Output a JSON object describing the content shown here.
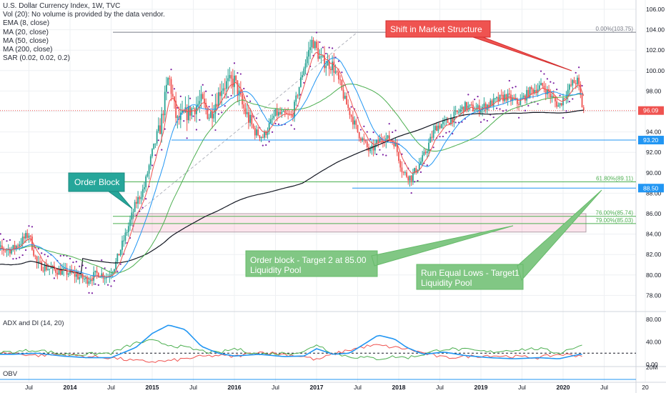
{
  "header": {
    "title": "U.S. Dollar Currency Index, 1W, TVC",
    "lines": [
      "Vol (20): No volume is provided by the data vendor.",
      "EMA (8, close)",
      "MA (20, close)",
      "MA (50, close)",
      "MA (200, close)",
      "SAR (0.02, 0.02, 0.2)"
    ]
  },
  "colors": {
    "candle_up": "#2aa394",
    "candle_down": "#ef5350",
    "ema8": "#ef5350",
    "ma20": "#2196f3",
    "ma50": "#4caf50",
    "ma200": "#131722",
    "sar": "#7b1fa2",
    "adx": "#2196f3",
    "di_plus": "#4caf50",
    "di_minus": "#ef5350",
    "price_tag": "#ef5350",
    "level_tag": "#2196f3",
    "annotation_green": "#81c784",
    "annotation_teal": "#26a69a",
    "annotation_red": "#ef5350"
  },
  "chart_data": {
    "type": "candlestick",
    "title": "U.S. Dollar Currency Index, 1W, TVC",
    "x_ticks": [
      "Jul",
      "2014",
      "Jul",
      "2015",
      "Jul",
      "2016",
      "Jul",
      "2017",
      "Jul",
      "2018",
      "Jul",
      "2019",
      "Jul",
      "2020",
      "Jul",
      "20"
    ],
    "y_ticks": [
      "106.00",
      "104.00",
      "102.00",
      "100.00",
      "98.00",
      "96.00",
      "94.00",
      "92.00",
      "90.00",
      "88.00",
      "86.00",
      "84.00",
      "82.00",
      "80.00",
      "78.00"
    ],
    "ylim": [
      76.6,
      106.6
    ],
    "price_path": [
      [
        2013.3,
        82.5
      ],
      [
        2013.5,
        84.0
      ],
      [
        2013.6,
        81.0
      ],
      [
        2013.8,
        80.5
      ],
      [
        2014.0,
        80.2
      ],
      [
        2014.2,
        79.5
      ],
      [
        2014.35,
        80.2
      ],
      [
        2014.45,
        79.8
      ],
      [
        2014.55,
        81.0
      ],
      [
        2014.7,
        84.5
      ],
      [
        2014.8,
        87.0
      ],
      [
        2014.9,
        88.5
      ],
      [
        2015.0,
        92.0
      ],
      [
        2015.1,
        94.5
      ],
      [
        2015.2,
        99.5
      ],
      [
        2015.3,
        95.0
      ],
      [
        2015.45,
        96.0
      ],
      [
        2015.6,
        97.0
      ],
      [
        2015.7,
        95.5
      ],
      [
        2015.85,
        98.5
      ],
      [
        2016.0,
        99.0
      ],
      [
        2016.1,
        96.5
      ],
      [
        2016.25,
        94.0
      ],
      [
        2016.35,
        93.5
      ],
      [
        2016.5,
        95.8
      ],
      [
        2016.7,
        95.5
      ],
      [
        2016.85,
        100.5
      ],
      [
        2016.95,
        103.0
      ],
      [
        2017.05,
        101.0
      ],
      [
        2017.2,
        100.5
      ],
      [
        2017.35,
        97.0
      ],
      [
        2017.5,
        94.0
      ],
      [
        2017.65,
        92.0
      ],
      [
        2017.8,
        93.5
      ],
      [
        2017.95,
        93.0
      ],
      [
        2018.05,
        90.0
      ],
      [
        2018.15,
        89.5
      ],
      [
        2018.3,
        91.5
      ],
      [
        2018.45,
        94.5
      ],
      [
        2018.6,
        95.0
      ],
      [
        2018.8,
        96.5
      ],
      [
        2018.95,
        96.2
      ],
      [
        2019.1,
        96.7
      ],
      [
        2019.3,
        97.5
      ],
      [
        2019.45,
        96.8
      ],
      [
        2019.6,
        98.0
      ],
      [
        2019.75,
        98.5
      ],
      [
        2019.85,
        97.5
      ],
      [
        2019.95,
        96.5
      ],
      [
        2020.05,
        98.0
      ],
      [
        2020.12,
        98.8
      ],
      [
        2020.18,
        99.0
      ],
      [
        2020.24,
        96.09
      ]
    ],
    "last_price": "96.09",
    "levels": [
      {
        "label": "93.20",
        "value": 93.2
      },
      {
        "label": "88.50",
        "value": 88.5
      }
    ],
    "fib_levels": [
      {
        "label": "0.00%(103.75)",
        "value": 103.75
      },
      {
        "label": "61.80%(89.11)",
        "value": 89.11
      },
      {
        "label": "76.00%(85.74)",
        "value": 85.74
      },
      {
        "label": "79.00%(85.03)",
        "value": 85.03
      }
    ],
    "order_block_zone": [
      84.2,
      86.0
    ],
    "annotations": {
      "order_block": "Order Block",
      "shift": "Shift in Market Structure",
      "target2": [
        "Order block - Target 2 at 85.00",
        "Liquidity Pool"
      ],
      "target1": [
        "Run Equal Lows - Target1",
        "Liquidity Pool"
      ]
    },
    "indicators": {
      "adx_title": "ADX and DI (14, 20)",
      "adx_ticks": [
        "80.00",
        "40.00",
        "0.00"
      ],
      "adx_ylim": [
        0,
        80
      ],
      "adx_threshold": 20,
      "adx_values": [
        [
          2013.3,
          18
        ],
        [
          2013.6,
          20
        ],
        [
          2013.9,
          15
        ],
        [
          2014.2,
          12
        ],
        [
          2014.5,
          12
        ],
        [
          2014.8,
          30
        ],
        [
          2015.0,
          55
        ],
        [
          2015.2,
          70
        ],
        [
          2015.4,
          62
        ],
        [
          2015.6,
          32
        ],
        [
          2015.8,
          20
        ],
        [
          2016.0,
          15
        ],
        [
          2016.3,
          18
        ],
        [
          2016.6,
          14
        ],
        [
          2016.85,
          15
        ],
        [
          2017.0,
          28
        ],
        [
          2017.2,
          18
        ],
        [
          2017.4,
          20
        ],
        [
          2017.6,
          38
        ],
        [
          2017.75,
          52
        ],
        [
          2017.95,
          45
        ],
        [
          2018.1,
          30
        ],
        [
          2018.3,
          18
        ],
        [
          2018.55,
          22
        ],
        [
          2018.8,
          16
        ],
        [
          2019.1,
          12
        ],
        [
          2019.4,
          10
        ],
        [
          2019.7,
          12
        ],
        [
          2019.95,
          10
        ],
        [
          2020.2,
          18
        ]
      ],
      "di_plus_values": [
        [
          2013.3,
          22
        ],
        [
          2013.6,
          26
        ],
        [
          2013.9,
          18
        ],
        [
          2014.2,
          18
        ],
        [
          2014.5,
          20
        ],
        [
          2014.8,
          38
        ],
        [
          2015.0,
          42
        ],
        [
          2015.2,
          35
        ],
        [
          2015.4,
          30
        ],
        [
          2015.6,
          24
        ],
        [
          2015.8,
          20
        ],
        [
          2016.0,
          28
        ],
        [
          2016.3,
          18
        ],
        [
          2016.6,
          20
        ],
        [
          2016.85,
          22
        ],
        [
          2017.0,
          36
        ],
        [
          2017.2,
          20
        ],
        [
          2017.4,
          14
        ],
        [
          2017.6,
          12
        ],
        [
          2017.75,
          10
        ],
        [
          2017.95,
          14
        ],
        [
          2018.1,
          12
        ],
        [
          2018.3,
          18
        ],
        [
          2018.55,
          28
        ],
        [
          2018.8,
          26
        ],
        [
          2019.1,
          22
        ],
        [
          2019.4,
          26
        ],
        [
          2019.7,
          28
        ],
        [
          2019.95,
          20
        ],
        [
          2020.2,
          34
        ]
      ],
      "di_minus_values": [
        [
          2013.3,
          20
        ],
        [
          2013.6,
          16
        ],
        [
          2013.9,
          18
        ],
        [
          2014.2,
          14
        ],
        [
          2014.5,
          12
        ],
        [
          2014.8,
          6
        ],
        [
          2015.0,
          5
        ],
        [
          2015.2,
          6
        ],
        [
          2015.4,
          10
        ],
        [
          2015.6,
          14
        ],
        [
          2015.8,
          16
        ],
        [
          2016.0,
          14
        ],
        [
          2016.3,
          22
        ],
        [
          2016.6,
          18
        ],
        [
          2016.85,
          14
        ],
        [
          2017.0,
          8
        ],
        [
          2017.2,
          18
        ],
        [
          2017.4,
          26
        ],
        [
          2017.6,
          32
        ],
        [
          2017.75,
          34
        ],
        [
          2017.95,
          30
        ],
        [
          2018.1,
          28
        ],
        [
          2018.3,
          20
        ],
        [
          2018.55,
          12
        ],
        [
          2018.8,
          14
        ],
        [
          2019.1,
          16
        ],
        [
          2019.4,
          14
        ],
        [
          2019.7,
          12
        ],
        [
          2019.95,
          18
        ],
        [
          2020.2,
          16
        ]
      ]
    },
    "obv": {
      "title": "OBV",
      "tick": "20M"
    }
  }
}
